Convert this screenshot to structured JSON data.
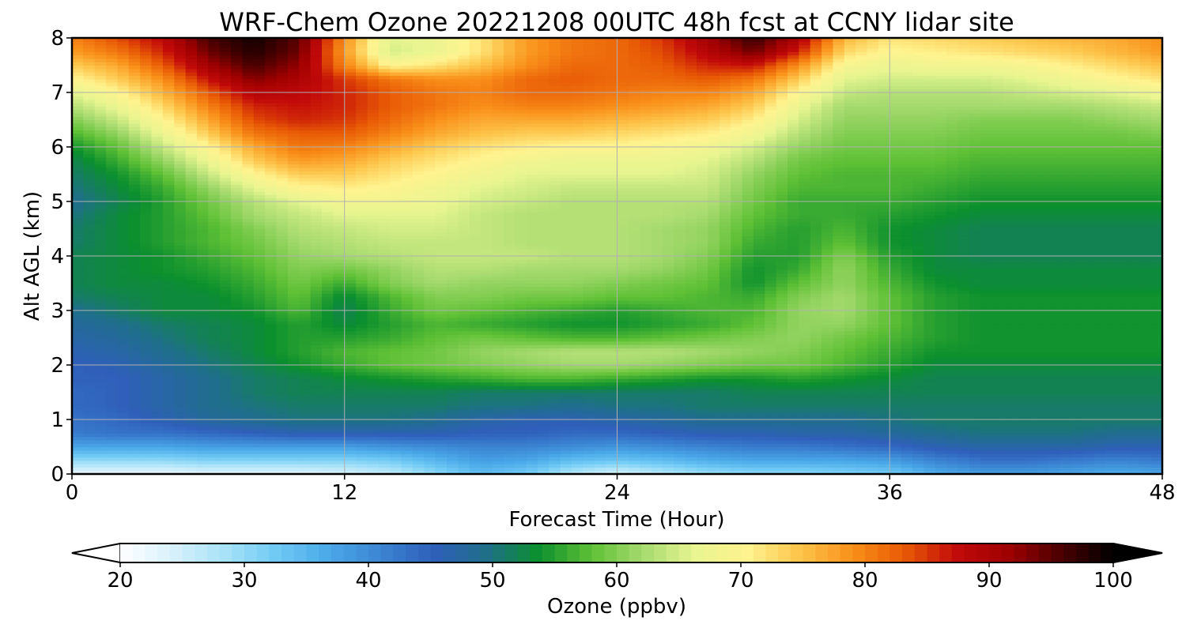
{
  "chart_data": {
    "type": "heatmap",
    "title": "WRF-Chem Ozone  20221208 00UTC 48h fcst at CCNY lidar site",
    "xlabel": "Forecast Time (Hour)",
    "ylabel": "Alt AGL (km)",
    "xlim": [
      0,
      48
    ],
    "ylim": [
      0,
      8
    ],
    "xticks": [
      0,
      12,
      24,
      36,
      48
    ],
    "yticks": [
      0,
      1,
      2,
      3,
      4,
      5,
      6,
      7,
      8
    ],
    "grid": true,
    "x": [
      0,
      2,
      4,
      6,
      8,
      10,
      12,
      14,
      16,
      18,
      20,
      22,
      24,
      26,
      28,
      30,
      32,
      34,
      36,
      38,
      40,
      42,
      44,
      46,
      48
    ],
    "y": [
      0,
      0.25,
      0.5,
      0.75,
      1,
      1.25,
      1.5,
      1.75,
      2,
      2.25,
      2.5,
      2.75,
      3,
      3.25,
      3.5,
      3.75,
      4,
      4.25,
      4.5,
      4.75,
      5,
      5.25,
      5.5,
      5.75,
      6,
      6.25,
      6.5,
      6.75,
      7,
      7.25,
      7.5,
      7.75,
      8
    ],
    "values": [
      [
        22,
        22,
        22,
        23,
        23,
        23,
        24,
        26,
        30,
        34,
        32,
        27,
        24,
        27,
        29,
        30,
        30,
        31,
        32,
        36,
        38,
        38,
        37,
        36,
        37
      ],
      [
        30,
        30,
        30,
        31,
        31,
        31,
        31,
        32,
        35,
        38,
        37,
        34,
        33,
        34,
        36,
        37,
        37,
        37,
        38,
        41,
        43,
        43,
        42,
        41,
        42
      ],
      [
        37,
        37,
        37,
        38,
        38,
        38,
        38,
        39,
        40,
        41,
        41,
        40,
        39,
        40,
        41,
        42,
        42,
        43,
        44,
        46,
        47,
        47,
        47,
        46,
        46
      ],
      [
        42,
        43,
        43,
        44,
        45,
        46,
        46,
        46,
        46,
        45,
        45,
        44,
        44,
        45,
        46,
        46,
        47,
        47,
        48,
        49,
        50,
        50,
        50,
        49,
        49
      ],
      [
        43,
        44,
        46,
        48,
        49,
        50,
        50,
        50,
        49,
        47,
        46,
        46,
        47,
        48,
        49,
        49,
        49,
        49,
        50,
        51,
        51,
        51,
        51,
        51,
        51
      ],
      [
        44,
        45,
        47,
        49,
        50,
        51,
        51,
        51,
        51,
        50,
        50,
        49,
        50,
        50,
        51,
        51,
        51,
        51,
        51,
        51,
        51,
        51,
        51,
        51,
        51
      ],
      [
        44,
        45,
        47,
        49,
        51,
        52,
        52,
        52,
        52,
        51,
        51,
        51,
        51,
        51,
        51,
        52,
        52,
        52,
        52,
        52,
        52,
        52,
        52,
        52,
        52
      ],
      [
        45,
        45,
        47,
        49,
        51,
        52,
        53,
        54,
        55,
        56,
        57,
        57,
        56,
        55,
        54,
        54,
        55,
        54,
        53,
        52,
        52,
        52,
        52,
        52,
        52
      ],
      [
        45,
        46,
        48,
        50,
        52,
        54,
        56,
        58,
        59,
        60,
        61,
        62,
        62,
        61,
        60,
        59,
        59,
        57,
        55,
        53,
        53,
        53,
        53,
        53,
        53
      ],
      [
        46,
        47,
        49,
        51,
        53,
        55,
        57,
        58,
        59,
        61,
        62,
        63,
        63,
        63,
        62,
        61,
        60,
        58,
        56,
        54,
        54,
        54,
        54,
        54,
        54
      ],
      [
        47,
        48,
        50,
        52,
        53,
        55,
        55,
        56,
        58,
        59,
        58,
        57,
        57,
        58,
        59,
        60,
        61,
        59,
        57,
        55,
        54,
        54,
        54,
        54,
        54
      ],
      [
        48,
        49,
        51,
        52,
        53,
        55,
        53,
        55,
        57,
        56,
        55,
        54,
        54,
        55,
        56,
        58,
        61,
        61,
        58,
        55,
        54,
        54,
        54,
        54,
        54
      ],
      [
        49,
        51,
        53,
        53,
        54,
        57,
        52,
        56,
        59,
        58,
        57,
        56,
        55,
        56,
        57,
        57,
        61,
        62,
        58,
        55,
        54,
        54,
        54,
        54,
        54
      ],
      [
        51,
        52,
        53,
        53,
        55,
        58,
        53,
        57,
        60,
        60,
        59,
        59,
        58,
        58,
        57,
        56,
        60,
        62,
        58,
        55,
        54,
        54,
        54,
        54,
        54
      ],
      [
        52,
        53,
        53,
        54,
        56,
        59,
        56,
        60,
        62,
        61,
        61,
        61,
        60,
        59,
        58,
        54,
        58,
        61,
        57,
        54,
        53,
        53,
        53,
        53,
        53
      ],
      [
        52,
        53,
        54,
        55,
        57,
        60,
        59,
        61,
        63,
        63,
        62,
        62,
        62,
        61,
        59,
        54,
        56,
        61,
        56,
        53,
        53,
        53,
        53,
        53,
        53
      ],
      [
        52,
        53,
        54,
        56,
        58,
        61,
        62,
        63,
        64,
        64,
        64,
        63,
        63,
        62,
        60,
        55,
        55,
        60,
        55,
        53,
        52,
        52,
        52,
        52,
        52
      ],
      [
        51,
        53,
        55,
        57,
        59,
        62,
        63,
        64,
        64,
        64,
        63,
        63,
        63,
        62,
        61,
        56,
        55,
        58,
        54,
        53,
        52,
        52,
        52,
        52,
        52
      ],
      [
        51,
        53,
        55,
        57,
        60,
        63,
        64,
        65,
        65,
        64,
        63,
        63,
        63,
        62,
        61,
        57,
        55,
        57,
        54,
        53,
        52,
        52,
        52,
        52,
        52
      ],
      [
        50,
        53,
        55,
        58,
        62,
        64,
        66,
        66,
        66,
        64,
        63,
        63,
        63,
        63,
        62,
        58,
        56,
        56,
        55,
        54,
        53,
        53,
        53,
        53,
        53
      ],
      [
        49,
        52,
        55,
        59,
        63,
        66,
        68,
        68,
        67,
        65,
        64,
        63,
        63,
        63,
        63,
        59,
        56,
        56,
        56,
        55,
        54,
        54,
        54,
        54,
        54
      ],
      [
        50,
        53,
        56,
        61,
        66,
        70,
        71,
        70,
        68,
        66,
        65,
        64,
        64,
        64,
        64,
        60,
        57,
        57,
        57,
        56,
        55,
        55,
        55,
        55,
        55
      ],
      [
        51,
        54,
        58,
        64,
        70,
        74,
        74,
        72,
        70,
        68,
        66,
        66,
        66,
        66,
        65,
        61,
        58,
        57,
        57,
        57,
        56,
        56,
        56,
        56,
        56
      ],
      [
        52,
        56,
        61,
        67,
        74,
        78,
        77,
        74,
        72,
        70,
        68,
        67,
        67,
        67,
        66,
        63,
        59,
        58,
        58,
        58,
        57,
        57,
        57,
        57,
        57
      ],
      [
        54,
        58,
        64,
        70,
        77,
        81,
        80,
        77,
        74,
        72,
        71,
        70,
        70,
        69,
        68,
        65,
        61,
        59,
        59,
        59,
        58,
        58,
        58,
        58,
        58
      ],
      [
        57,
        61,
        67,
        74,
        81,
        83,
        83,
        80,
        77,
        75,
        74,
        74,
        73,
        72,
        71,
        68,
        63,
        60,
        60,
        60,
        59,
        59,
        59,
        59,
        60
      ],
      [
        60,
        64,
        70,
        77,
        84,
        86,
        85,
        82,
        79,
        77,
        77,
        77,
        76,
        75,
        74,
        71,
        65,
        61,
        61,
        61,
        60,
        60,
        60,
        61,
        62
      ],
      [
        63,
        67,
        73,
        80,
        86,
        87,
        86,
        83,
        81,
        79,
        80,
        80,
        79,
        78,
        77,
        74,
        67,
        62,
        62,
        62,
        62,
        62,
        62,
        63,
        64
      ],
      [
        66,
        70,
        76,
        83,
        89,
        88,
        86,
        83,
        81,
        80,
        82,
        82,
        81,
        80,
        80,
        77,
        70,
        64,
        63,
        63,
        63,
        64,
        65,
        66,
        68
      ],
      [
        70,
        74,
        79,
        87,
        93,
        90,
        85,
        81,
        79,
        79,
        82,
        83,
        82,
        82,
        83,
        81,
        74,
        66,
        65,
        65,
        65,
        66,
        68,
        70,
        72
      ],
      [
        74,
        77,
        83,
        91,
        96,
        92,
        80,
        70,
        72,
        75,
        79,
        82,
        82,
        83,
        86,
        87,
        79,
        69,
        67,
        68,
        68,
        69,
        71,
        73,
        75
      ],
      [
        78,
        81,
        86,
        94,
        98,
        94,
        78,
        65,
        67,
        72,
        78,
        81,
        82,
        84,
        89,
        94,
        86,
        73,
        70,
        71,
        72,
        73,
        74,
        76,
        78
      ],
      [
        80,
        84,
        88,
        96,
        99,
        95,
        79,
        66,
        67,
        72,
        78,
        81,
        82,
        85,
        91,
        97,
        90,
        76,
        72,
        73,
        74,
        75,
        76,
        77,
        79
      ]
    ],
    "colorbar": {
      "label": "Ozone  (ppbv)",
      "min": 20,
      "max": 100,
      "ticks": [
        20,
        30,
        40,
        50,
        60,
        70,
        80,
        90,
        100
      ],
      "extend": "both",
      "orientation": "horizontal",
      "placement": "bottom",
      "colors": [
        "#ffffff",
        "#d8f1fb",
        "#a8e2f8",
        "#6ec9f4",
        "#4aa8e8",
        "#3b84d2",
        "#2f5fba",
        "#1f6f8a",
        "#0b8f2e",
        "#5ec035",
        "#a6da6f",
        "#e8f590",
        "#fff38f",
        "#fdc44a",
        "#f9901a",
        "#e85a05",
        "#c20a0a",
        "#9e0000",
        "#4a0000",
        "#000000"
      ],
      "under_color": "#ffffff",
      "over_color": "#000000"
    }
  }
}
